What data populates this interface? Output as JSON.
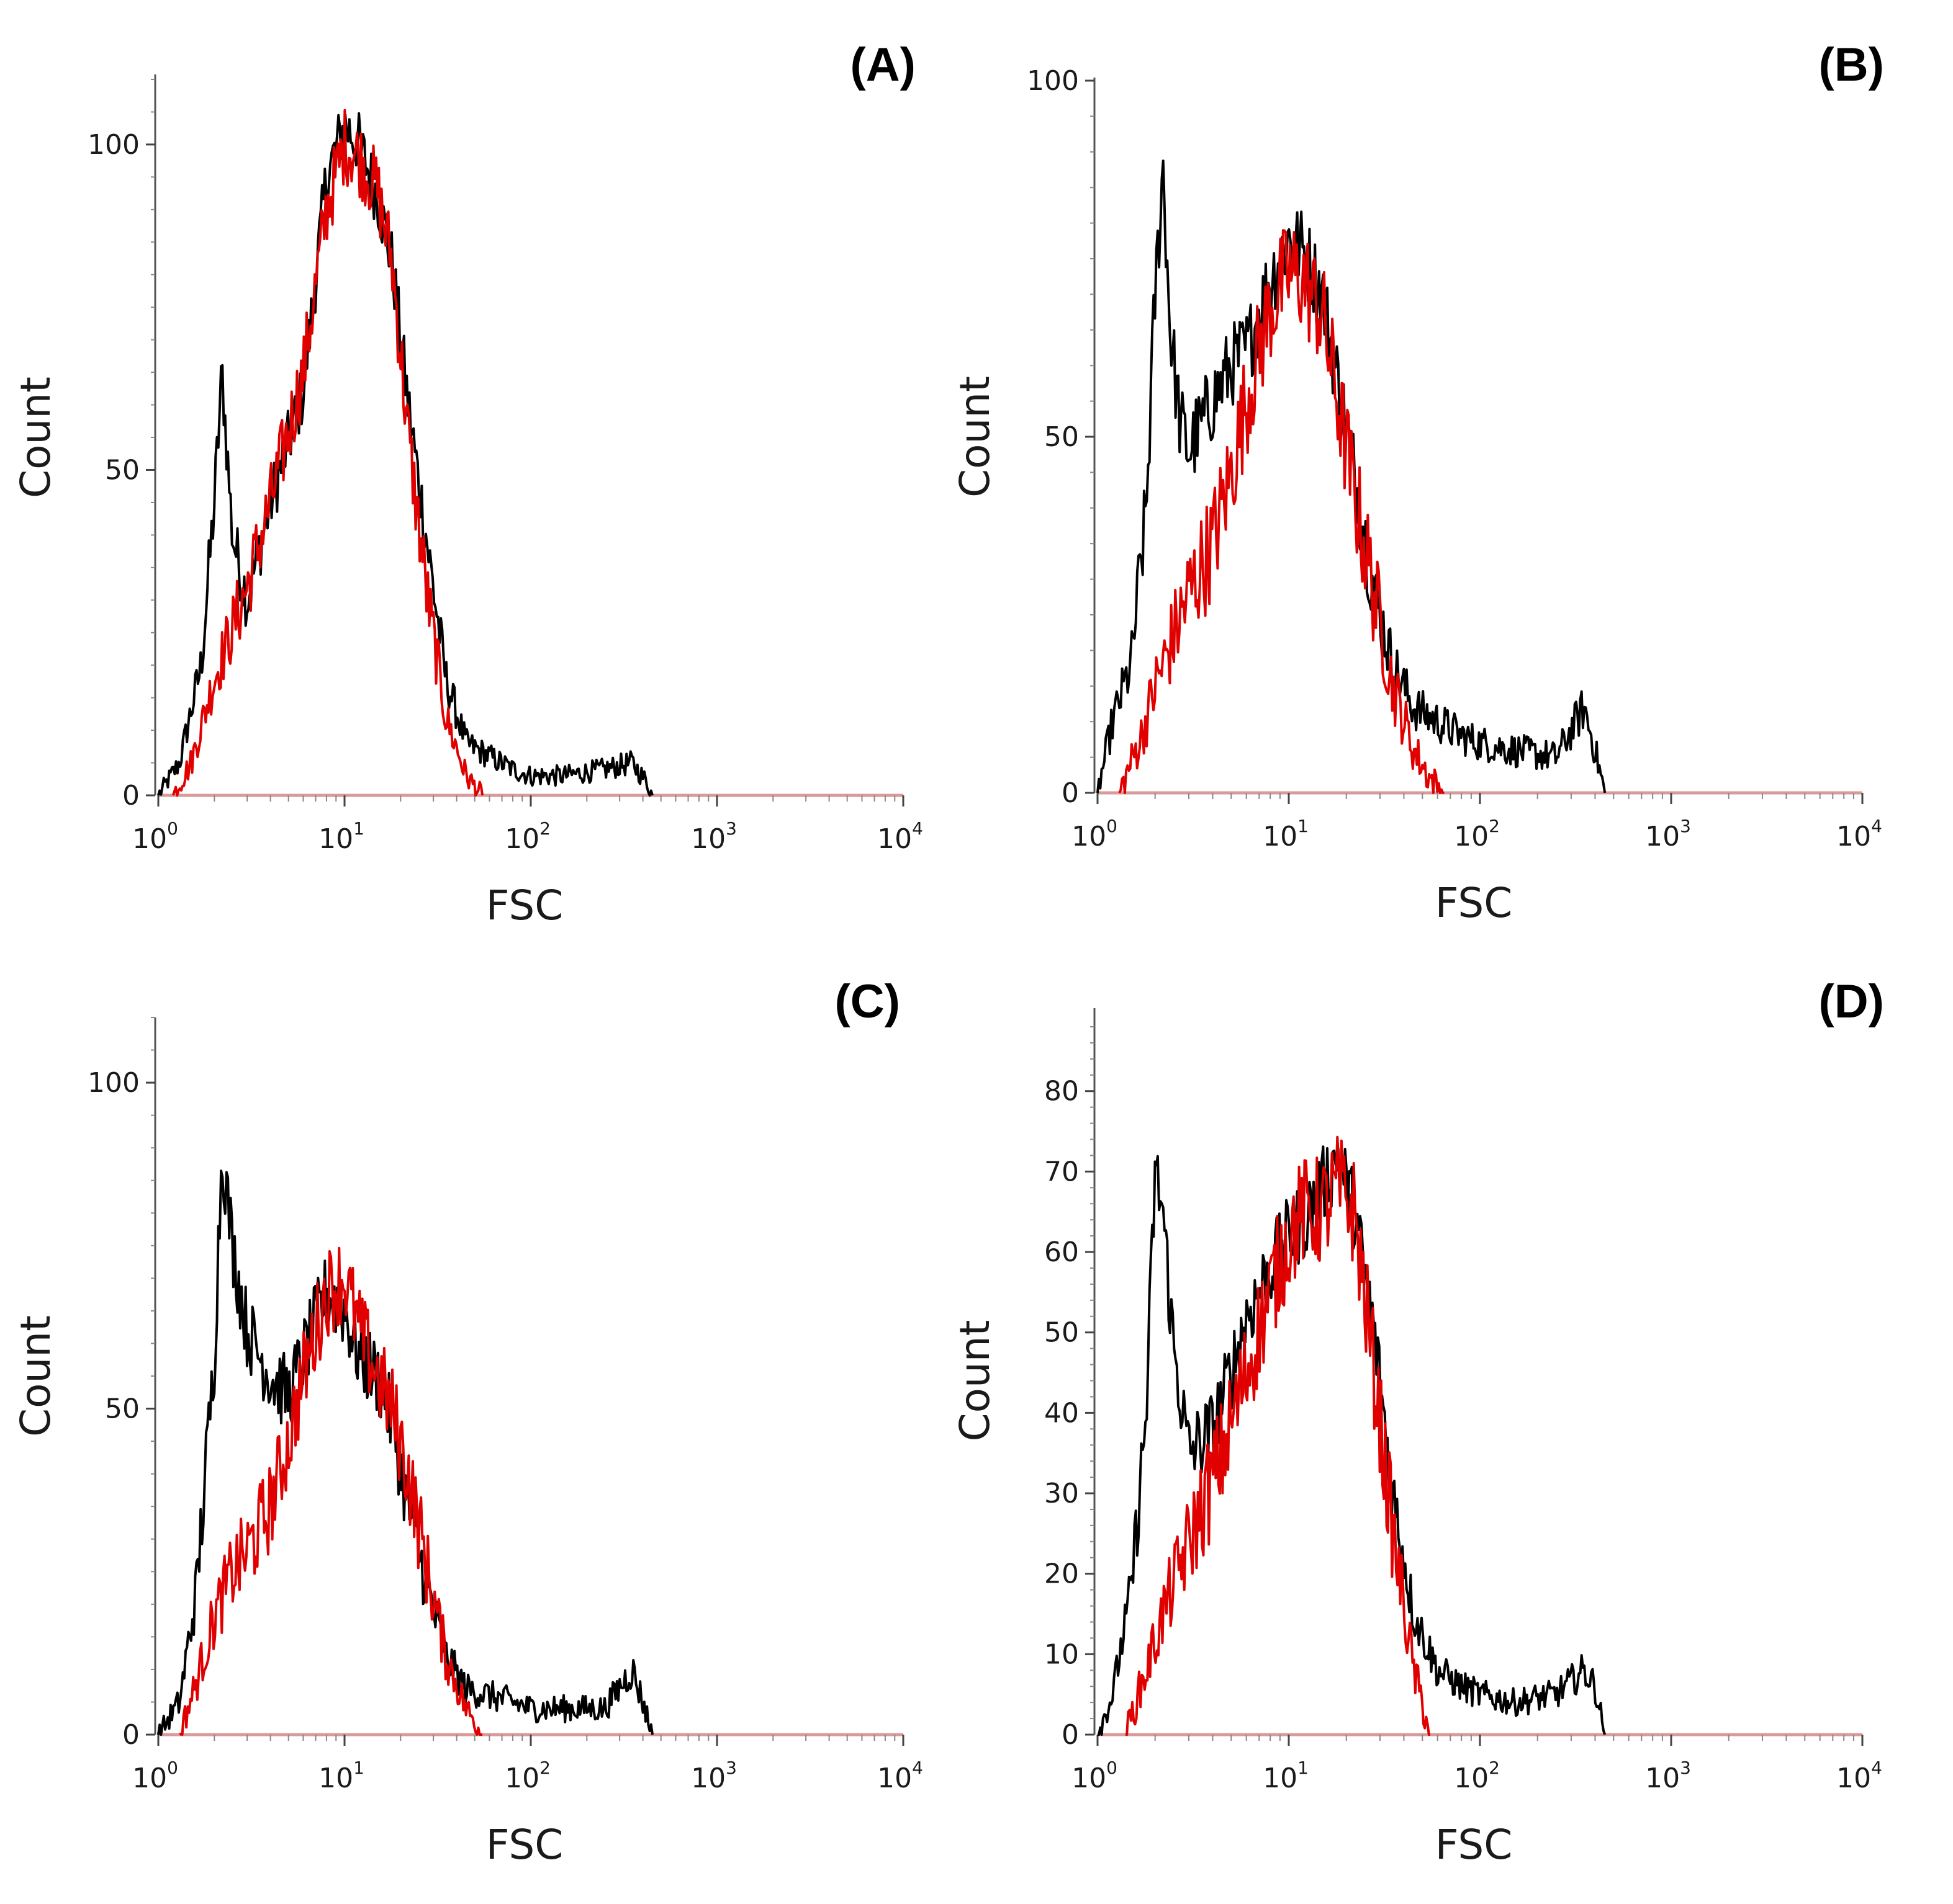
{
  "figure": {
    "panels": [
      "(A)",
      "(B)",
      "(C)",
      "(D)"
    ]
  },
  "chart_data": [
    {
      "type": "line",
      "panel_label": "(A)",
      "title": "",
      "xlabel": "FSC",
      "ylabel": "Count",
      "xscale": "log",
      "xlim": [
        1,
        10000
      ],
      "ylim": [
        0,
        110
      ],
      "x_ticks": [
        {
          "base": "10",
          "exp": "0"
        },
        {
          "base": "10",
          "exp": "1"
        },
        {
          "base": "10",
          "exp": "2"
        },
        {
          "base": "10",
          "exp": "3"
        },
        {
          "base": "10",
          "exp": "4"
        }
      ],
      "y_ticks": [
        {
          "value": 0,
          "label": "0"
        },
        {
          "value": 50,
          "label": "50"
        },
        {
          "value": 100,
          "label": "100"
        }
      ],
      "series": [
        {
          "name": "black",
          "color": "#000000",
          "jitter": 5,
          "x": [
            1,
            1.3,
            1.7,
            2.0,
            2.2,
            2.5,
            3.0,
            4.0,
            6.0,
            8.0,
            10,
            12,
            15,
            18,
            22,
            28,
            35,
            45,
            60,
            80,
            100,
            150,
            250,
            350,
            420,
            450
          ],
          "y": [
            0,
            5,
            20,
            45,
            65,
            40,
            30,
            45,
            62,
            95,
            103,
            100,
            92,
            82,
            60,
            38,
            18,
            8,
            6,
            4,
            3,
            3,
            4,
            5,
            2,
            0
          ]
        },
        {
          "name": "red",
          "color": "#e00000",
          "jitter": 6,
          "x": [
            1.2,
            1.5,
            2.0,
            3.0,
            4.0,
            6.0,
            8.0,
            10,
            12,
            15,
            18,
            22,
            28,
            35,
            45,
            55
          ],
          "y": [
            0,
            5,
            18,
            32,
            45,
            65,
            90,
            100,
            98,
            93,
            82,
            55,
            30,
            12,
            3,
            0
          ]
        }
      ]
    },
    {
      "type": "line",
      "panel_label": "(B)",
      "title": "",
      "xlabel": "FSC",
      "ylabel": "Count",
      "xscale": "log",
      "xlim": [
        1,
        10000
      ],
      "ylim": [
        0,
        100
      ],
      "x_ticks": [
        {
          "base": "10",
          "exp": "0"
        },
        {
          "base": "10",
          "exp": "1"
        },
        {
          "base": "10",
          "exp": "2"
        },
        {
          "base": "10",
          "exp": "3"
        },
        {
          "base": "10",
          "exp": "4"
        }
      ],
      "y_ticks": [
        {
          "value": 0,
          "label": "0"
        },
        {
          "value": 50,
          "label": "50"
        },
        {
          "value": 100,
          "label": "100"
        }
      ],
      "series": [
        {
          "name": "black",
          "color": "#000000",
          "jitter": 6,
          "x": [
            1,
            1.2,
            1.5,
            1.8,
            2.0,
            2.2,
            2.4,
            2.7,
            3.0,
            4.0,
            5.0,
            6.0,
            8.0,
            10,
            12,
            15,
            18,
            22,
            28,
            35,
            45,
            60,
            80,
            100,
            150,
            250,
            350,
            400,
            450
          ],
          "y": [
            0,
            10,
            18,
            40,
            70,
            88,
            65,
            52,
            48,
            55,
            60,
            62,
            72,
            78,
            76,
            70,
            58,
            45,
            28,
            18,
            12,
            10,
            8,
            7,
            6,
            5,
            12,
            6,
            0
          ]
        },
        {
          "name": "red",
          "color": "#e00000",
          "jitter": 8,
          "x": [
            1.3,
            1.7,
            2.0,
            2.5,
            3.0,
            4.0,
            5.0,
            6.0,
            8.0,
            10,
            12,
            15,
            18,
            22,
            28,
            35,
            45,
            55,
            65
          ],
          "y": [
            0,
            8,
            15,
            22,
            28,
            35,
            45,
            55,
            68,
            73,
            72,
            67,
            55,
            42,
            28,
            15,
            6,
            2,
            0
          ]
        }
      ]
    },
    {
      "type": "line",
      "panel_label": "(C)",
      "title": "",
      "xlabel": "FSC",
      "ylabel": "Count",
      "xscale": "log",
      "xlim": [
        1,
        10000
      ],
      "ylim": [
        0,
        110
      ],
      "x_ticks": [
        {
          "base": "10",
          "exp": "0"
        },
        {
          "base": "10",
          "exp": "1"
        },
        {
          "base": "10",
          "exp": "2"
        },
        {
          "base": "10",
          "exp": "3"
        },
        {
          "base": "10",
          "exp": "4"
        }
      ],
      "y_ticks": [
        {
          "value": 0,
          "label": "0"
        },
        {
          "value": 50,
          "label": "50"
        },
        {
          "value": 100,
          "label": "100"
        }
      ],
      "series": [
        {
          "name": "black",
          "color": "#000000",
          "jitter": 6,
          "x": [
            1,
            1.3,
            1.6,
            2.0,
            2.2,
            2.5,
            3.0,
            4.0,
            5.0,
            6.0,
            8.0,
            10,
            12,
            15,
            18,
            22,
            28,
            35,
            45,
            60,
            80,
            100,
            150,
            250,
            350,
            400,
            450
          ],
          "y": [
            0,
            5,
            22,
            58,
            90,
            75,
            62,
            55,
            52,
            58,
            68,
            65,
            58,
            55,
            48,
            35,
            22,
            12,
            7,
            6,
            5,
            4,
            4,
            4,
            10,
            5,
            0
          ]
        },
        {
          "name": "red",
          "color": "#e00000",
          "jitter": 7,
          "x": [
            1.3,
            1.6,
            2.0,
            2.5,
            3.0,
            4.0,
            5.0,
            6.0,
            8.0,
            10,
            12,
            15,
            18,
            22,
            28,
            35,
            45,
            55
          ],
          "y": [
            0,
            8,
            18,
            25,
            28,
            35,
            45,
            55,
            68,
            70,
            62,
            55,
            50,
            40,
            25,
            12,
            4,
            0
          ]
        }
      ]
    },
    {
      "type": "line",
      "panel_label": "(D)",
      "title": "",
      "xlabel": "FSC",
      "ylabel": "Count",
      "xscale": "log",
      "xlim": [
        1,
        10000
      ],
      "ylim": [
        0,
        88
      ],
      "x_ticks": [
        {
          "base": "10",
          "exp": "0"
        },
        {
          "base": "10",
          "exp": "1"
        },
        {
          "base": "10",
          "exp": "2"
        },
        {
          "base": "10",
          "exp": "3"
        },
        {
          "base": "10",
          "exp": "4"
        }
      ],
      "y_ticks": [
        {
          "value": 0,
          "label": "0"
        },
        {
          "value": 10,
          "label": "10"
        },
        {
          "value": 20,
          "label": "20"
        },
        {
          "value": 30,
          "label": "30"
        },
        {
          "value": 40,
          "label": "40"
        },
        {
          "value": 50,
          "label": "50"
        },
        {
          "value": 60,
          "label": "60"
        },
        {
          "value": 70,
          "label": "70"
        },
        {
          "value": 80,
          "label": "80"
        }
      ],
      "series": [
        {
          "name": "black",
          "color": "#000000",
          "jitter": 5,
          "x": [
            1,
            1.2,
            1.5,
            1.8,
            2.0,
            2.2,
            2.5,
            3.0,
            4.0,
            5.0,
            6.0,
            8.0,
            10,
            12,
            15,
            18,
            22,
            28,
            35,
            45,
            60,
            80,
            100,
            150,
            250,
            350,
            400,
            450
          ],
          "y": [
            0,
            5,
            18,
            40,
            70,
            65,
            48,
            35,
            38,
            45,
            52,
            58,
            62,
            64,
            68,
            72,
            65,
            50,
            30,
            15,
            8,
            6,
            5,
            4,
            5,
            8,
            6,
            0
          ]
        },
        {
          "name": "red",
          "color": "#e00000",
          "jitter": 7,
          "x": [
            1.4,
            1.8,
            2.2,
            2.8,
            3.5,
            4.5,
            6.0,
            8.0,
            10,
            12,
            15,
            18,
            22,
            28,
            35,
            45,
            55
          ],
          "y": [
            0,
            8,
            15,
            22,
            28,
            35,
            45,
            55,
            62,
            65,
            65,
            68,
            65,
            45,
            25,
            8,
            0
          ]
        }
      ]
    }
  ]
}
